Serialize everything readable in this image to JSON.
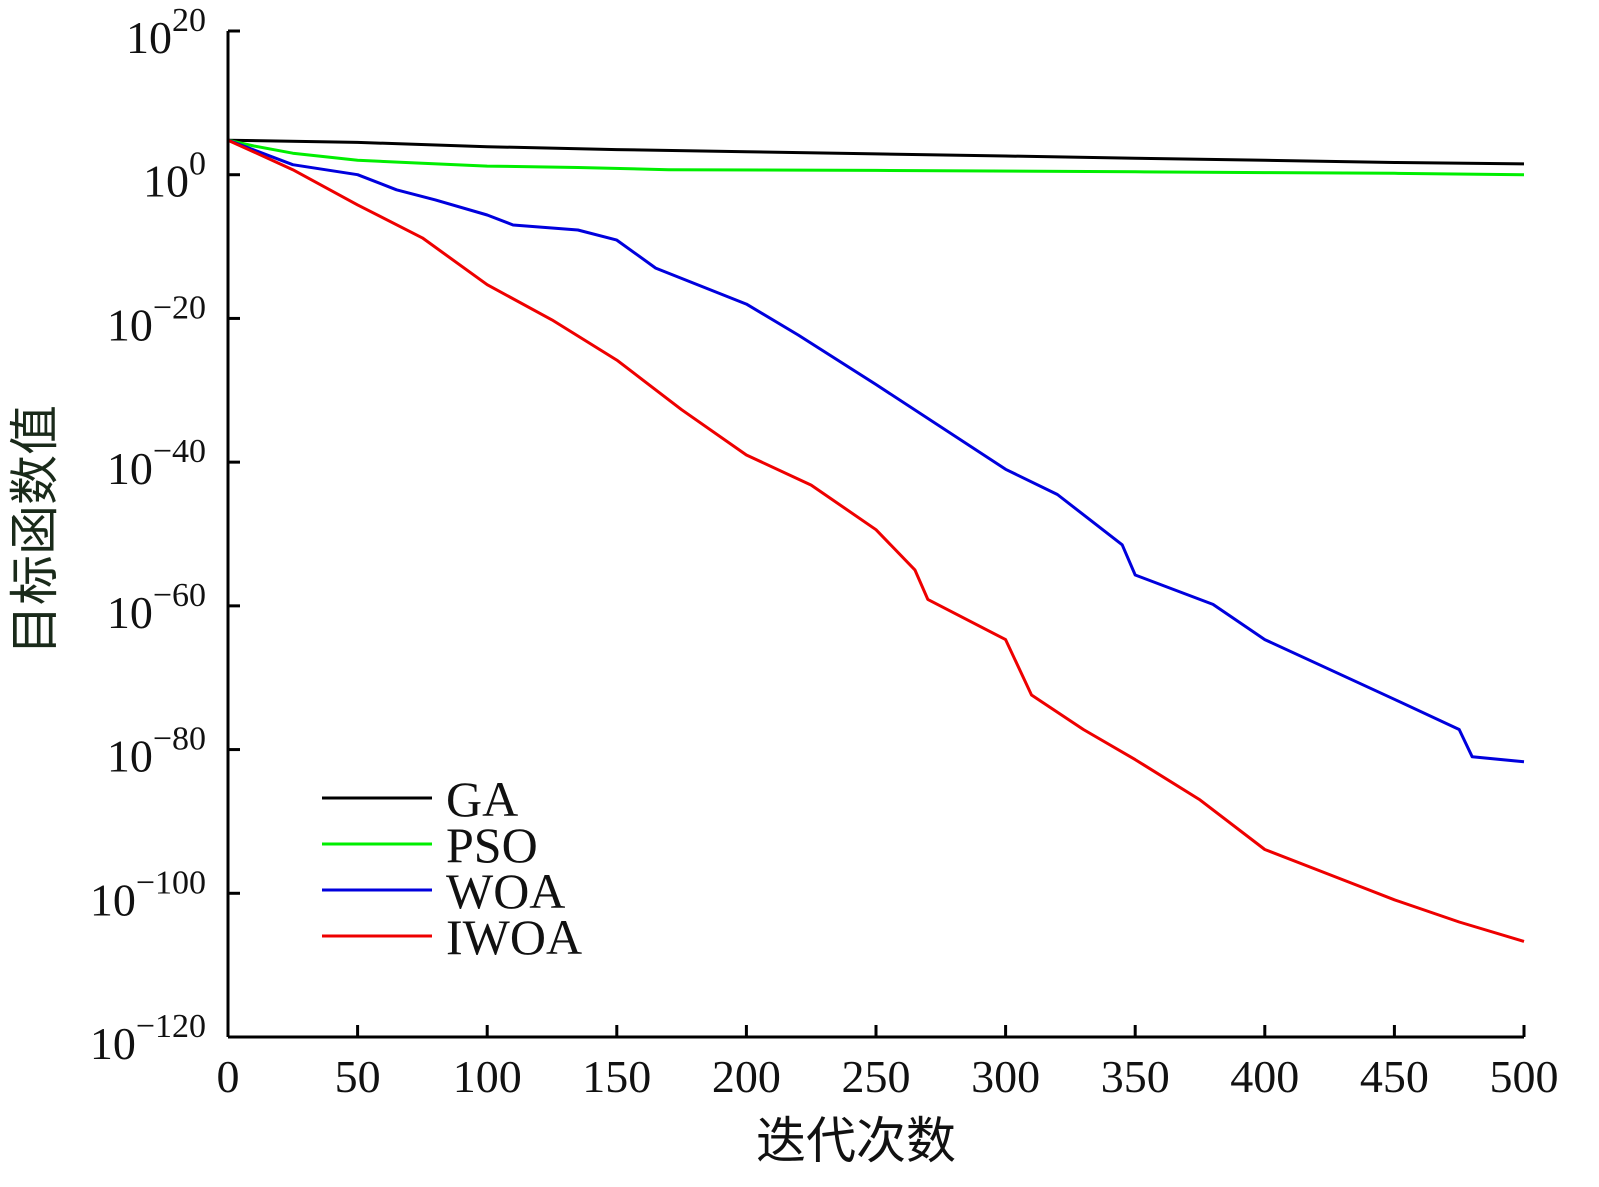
{
  "chart_data": {
    "type": "line",
    "title": "",
    "xlabel": "迭代次数",
    "ylabel": "目标函数值",
    "xlim": [
      0,
      500
    ],
    "ylim_log10": [
      -120,
      20
    ],
    "yscale": "log",
    "grid": false,
    "legend_position": "lower-left",
    "x_ticks": [
      "0",
      "50",
      "100",
      "150",
      "200",
      "250",
      "300",
      "350",
      "400",
      "450",
      "500"
    ],
    "y_ticks": [
      {
        "base": "10",
        "exp": "20"
      },
      {
        "base": "10",
        "exp": "0"
      },
      {
        "base": "10",
        "exp": "−20"
      },
      {
        "base": "10",
        "exp": "−40"
      },
      {
        "base": "10",
        "exp": "−60"
      },
      {
        "base": "10",
        "exp": "−80"
      },
      {
        "base": "10",
        "exp": "−100"
      },
      {
        "base": "10",
        "exp": "−120"
      }
    ],
    "series": [
      {
        "name": "GA",
        "color": "#000000",
        "x": [
          0,
          50,
          100,
          150,
          200,
          250,
          300,
          350,
          400,
          450,
          500
        ],
        "log10_y": [
          4.8,
          4.5,
          3.9,
          3.5,
          3.2,
          2.9,
          2.6,
          2.3,
          2.0,
          1.7,
          1.5
        ]
      },
      {
        "name": "PSO",
        "color": "#00ee00",
        "x": [
          0,
          10,
          25,
          50,
          75,
          100,
          135,
          170,
          250,
          350,
          400,
          450,
          500
        ],
        "log10_y": [
          4.8,
          4.0,
          3.0,
          2.0,
          1.6,
          1.2,
          1.0,
          0.7,
          0.6,
          0.4,
          0.3,
          0.2,
          0.0
        ]
      },
      {
        "name": "WOA",
        "color": "#0000dd",
        "x": [
          0,
          25,
          50,
          65,
          80,
          100,
          110,
          135,
          150,
          165,
          200,
          220,
          250,
          300,
          320,
          335,
          345,
          350,
          380,
          400,
          450,
          475,
          480,
          500
        ],
        "log10_y": [
          4.8,
          1.4,
          0,
          -2.1,
          -3.5,
          -5.6,
          -7,
          -7.7,
          -9.1,
          -13,
          -18,
          -22.3,
          -29.2,
          -41,
          -44.5,
          -48.7,
          -51.5,
          -55.7,
          -59.8,
          -64.7,
          -73,
          -77.2,
          -81,
          -81.7
        ]
      },
      {
        "name": "IWOA",
        "color": "#ee0000",
        "x": [
          0,
          25,
          50,
          75,
          100,
          125,
          150,
          175,
          200,
          225,
          250,
          265,
          270,
          300,
          310,
          330,
          350,
          375,
          400,
          425,
          450,
          475,
          500
        ],
        "log10_y": [
          4.8,
          0.7,
          -4.2,
          -8.8,
          -15.3,
          -20.2,
          -25.8,
          -32.7,
          -39,
          -43.2,
          -49.4,
          -55,
          -59.1,
          -64.7,
          -72.4,
          -77.2,
          -81.4,
          -87,
          -93.9,
          -97.4,
          -100.9,
          -104,
          -106.7
        ]
      }
    ]
  }
}
